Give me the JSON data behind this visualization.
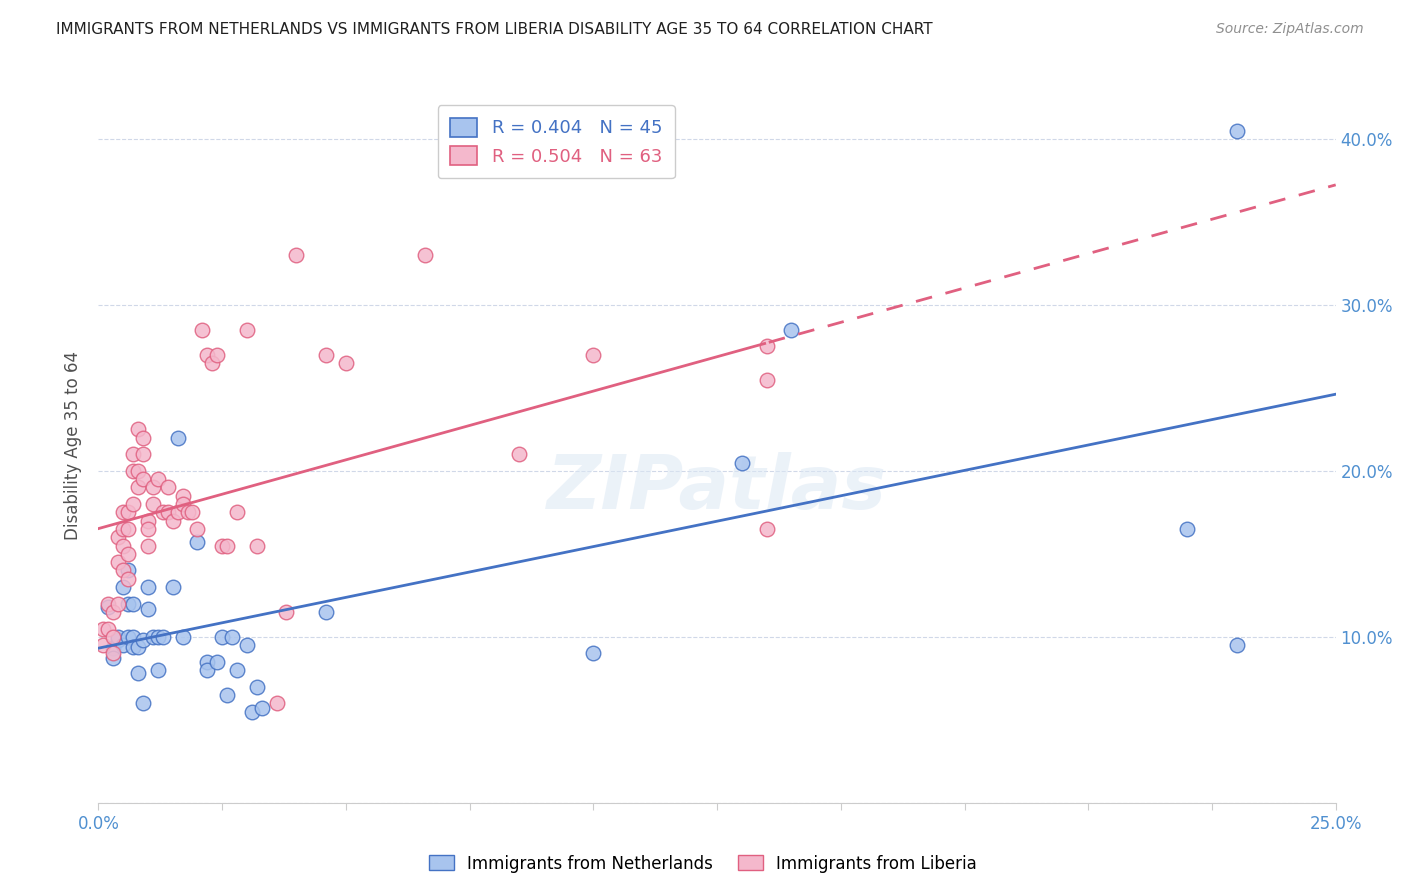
{
  "title": "IMMIGRANTS FROM NETHERLANDS VS IMMIGRANTS FROM LIBERIA DISABILITY AGE 35 TO 64 CORRELATION CHART",
  "source": "Source: ZipAtlas.com",
  "ylabel": "Disability Age 35 to 64",
  "x_min": 0.0,
  "x_max": 0.25,
  "y_min": 0.0,
  "y_max": 0.43,
  "x_ticks": [
    0.0,
    0.025,
    0.05,
    0.075,
    0.1,
    0.125,
    0.15,
    0.175,
    0.2,
    0.225,
    0.25
  ],
  "x_tick_labels_show": [
    "0.0%",
    "",
    "",
    "",
    "",
    "",
    "",
    "",
    "",
    "",
    "25.0%"
  ],
  "y_ticks": [
    0.0,
    0.1,
    0.2,
    0.3,
    0.4
  ],
  "y_tick_labels_show": [
    "",
    "10.0%",
    "20.0%",
    "30.0%",
    "40.0%"
  ],
  "legend_netherlands": "R = 0.404   N = 45",
  "legend_liberia": "R = 0.504   N = 63",
  "color_netherlands_fill": "#a8c4ee",
  "color_liberia_fill": "#f4b8cc",
  "color_netherlands_line": "#4472c4",
  "color_liberia_line": "#e06080",
  "watermark": "ZIPatlas",
  "netherlands_x": [
    0.002,
    0.003,
    0.003,
    0.004,
    0.004,
    0.005,
    0.005,
    0.006,
    0.006,
    0.006,
    0.007,
    0.007,
    0.007,
    0.008,
    0.008,
    0.009,
    0.009,
    0.01,
    0.01,
    0.011,
    0.012,
    0.012,
    0.013,
    0.015,
    0.016,
    0.017,
    0.02,
    0.022,
    0.022,
    0.024,
    0.025,
    0.026,
    0.027,
    0.028,
    0.03,
    0.031,
    0.032,
    0.033,
    0.046,
    0.1,
    0.13,
    0.14,
    0.22,
    0.23,
    0.23
  ],
  "netherlands_y": [
    0.118,
    0.093,
    0.087,
    0.098,
    0.1,
    0.13,
    0.095,
    0.14,
    0.12,
    0.1,
    0.12,
    0.1,
    0.094,
    0.078,
    0.094,
    0.06,
    0.098,
    0.13,
    0.117,
    0.1,
    0.1,
    0.08,
    0.1,
    0.13,
    0.22,
    0.1,
    0.157,
    0.085,
    0.08,
    0.085,
    0.1,
    0.065,
    0.1,
    0.08,
    0.095,
    0.055,
    0.07,
    0.057,
    0.115,
    0.09,
    0.205,
    0.285,
    0.165,
    0.405,
    0.095
  ],
  "liberia_x": [
    0.001,
    0.001,
    0.002,
    0.002,
    0.003,
    0.003,
    0.003,
    0.004,
    0.004,
    0.004,
    0.005,
    0.005,
    0.005,
    0.005,
    0.006,
    0.006,
    0.006,
    0.006,
    0.007,
    0.007,
    0.007,
    0.008,
    0.008,
    0.008,
    0.009,
    0.009,
    0.009,
    0.01,
    0.01,
    0.01,
    0.011,
    0.011,
    0.012,
    0.013,
    0.014,
    0.014,
    0.015,
    0.016,
    0.017,
    0.017,
    0.018,
    0.019,
    0.02,
    0.021,
    0.022,
    0.023,
    0.024,
    0.025,
    0.026,
    0.028,
    0.03,
    0.032,
    0.036,
    0.038,
    0.04,
    0.046,
    0.05,
    0.066,
    0.085,
    0.1,
    0.135,
    0.135,
    0.135
  ],
  "liberia_y": [
    0.105,
    0.095,
    0.12,
    0.105,
    0.115,
    0.1,
    0.09,
    0.16,
    0.145,
    0.12,
    0.175,
    0.165,
    0.155,
    0.14,
    0.175,
    0.165,
    0.15,
    0.135,
    0.21,
    0.2,
    0.18,
    0.225,
    0.2,
    0.19,
    0.22,
    0.21,
    0.195,
    0.17,
    0.165,
    0.155,
    0.19,
    0.18,
    0.195,
    0.175,
    0.19,
    0.175,
    0.17,
    0.175,
    0.185,
    0.18,
    0.175,
    0.175,
    0.165,
    0.285,
    0.27,
    0.265,
    0.27,
    0.155,
    0.155,
    0.175,
    0.285,
    0.155,
    0.06,
    0.115,
    0.33,
    0.27,
    0.265,
    0.33,
    0.21,
    0.27,
    0.165,
    0.275,
    0.255
  ]
}
